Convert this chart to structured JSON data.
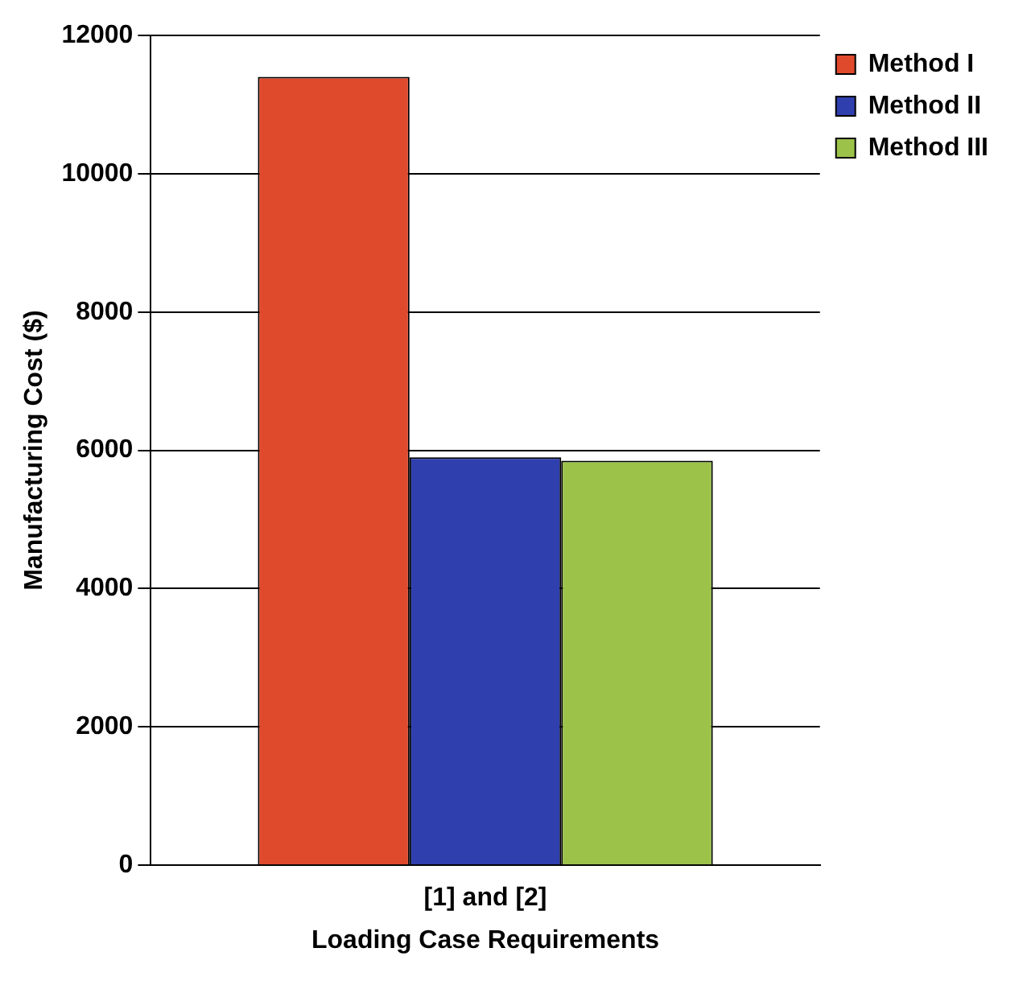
{
  "chart_data": {
    "type": "bar",
    "xlabel": "Loading Case Requirements",
    "ylabel": "Manufacturing Cost ($)",
    "categories": [
      "[1] and [2]"
    ],
    "series": [
      {
        "name": "Method I",
        "color": "#e04a2c",
        "values": [
          11400
        ]
      },
      {
        "name": "Method II",
        "color": "#2f3fae",
        "values": [
          5900
        ]
      },
      {
        "name": "Method III",
        "color": "#9cc24a",
        "values": [
          5850
        ]
      }
    ],
    "ylim": [
      0,
      12000
    ],
    "yticks": [
      0,
      2000,
      4000,
      6000,
      8000,
      10000,
      12000
    ],
    "grid": "y",
    "legend": "top right"
  }
}
